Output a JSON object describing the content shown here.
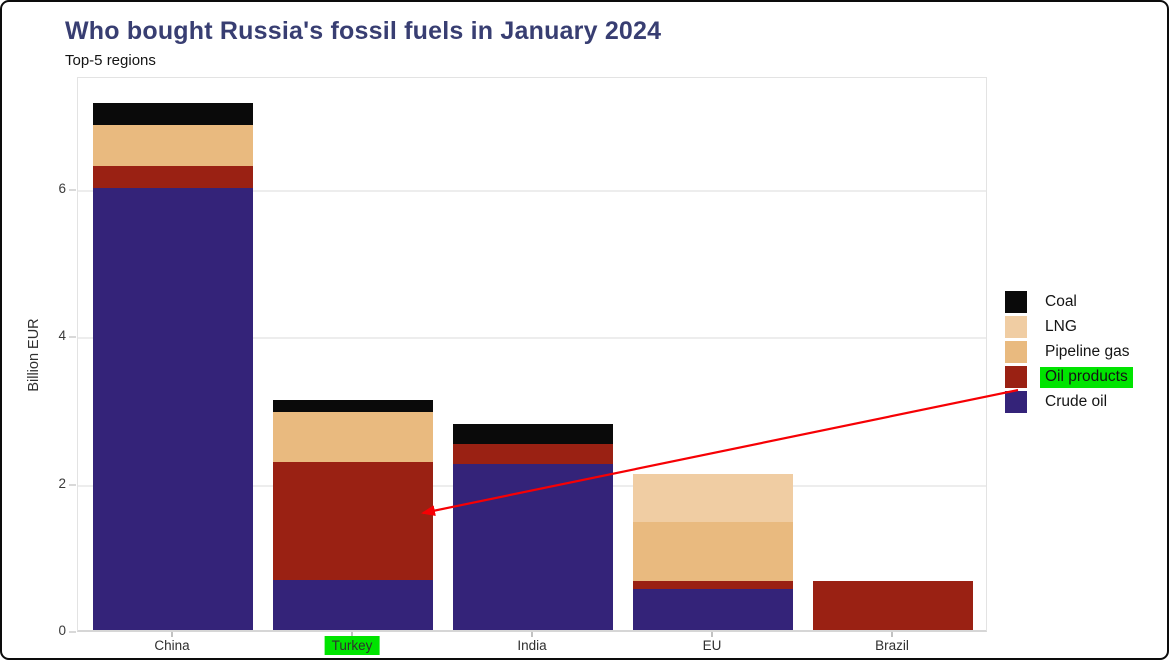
{
  "window": {
    "title": "Who bought Russia's fossil fuels in January 2024",
    "subtitle": "Top-5 regions"
  },
  "chart_data": {
    "type": "bar",
    "stacked": true,
    "title": "Who bought Russia's fossil fuels in January 2024",
    "subtitle": "Top-5 regions",
    "xlabel": "",
    "ylabel": "Billion EUR",
    "ylim": [
      0,
      7.5
    ],
    "yticks": [
      0,
      2,
      4,
      6
    ],
    "grid": true,
    "categories": [
      "China",
      "Turkey",
      "India",
      "EU",
      "Brazil"
    ],
    "series": [
      {
        "name": "Crude oil",
        "color": "#342379",
        "values": [
          6.0,
          0.68,
          2.25,
          0.56,
          0
        ]
      },
      {
        "name": "Oil products",
        "color": "#9a2113",
        "values": [
          0.3,
          1.6,
          0.28,
          0.1,
          0.66
        ]
      },
      {
        "name": "Pipeline gas",
        "color": "#e9ba7f",
        "values": [
          0.55,
          0.68,
          0,
          0.8,
          0
        ]
      },
      {
        "name": "LNG",
        "color": "#f0cda3",
        "values": [
          0,
          0,
          0,
          0.66,
          0
        ]
      },
      {
        "name": "Coal",
        "color": "#0a0a0a",
        "values": [
          0.3,
          0.16,
          0.27,
          0,
          0
        ]
      }
    ],
    "totals": [
      7.15,
      3.12,
      2.8,
      2.12,
      0.66
    ],
    "legend": {
      "position": "right-outside",
      "order": [
        "Coal",
        "LNG",
        "Pipeline gas",
        "Oil products",
        "Crude oil"
      ]
    },
    "highlights": {
      "legend_item": "Oil products",
      "category_label": "Turkey",
      "highlight_color": "#00e400",
      "arrow_color": "#f60004",
      "arrow_note": "red arrow from 'Oil products' legend entry to Turkey bar oil-products segment"
    }
  }
}
